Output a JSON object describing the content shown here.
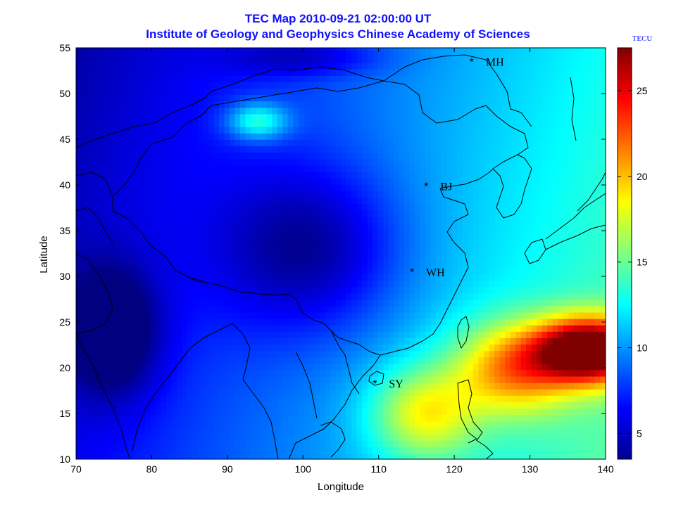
{
  "figure": {
    "title_line1": "TEC Map 2010-09-21 02:00:00 UT",
    "title_line2": "Institute of Geology and Geophysics Chinese Academy of Sciences",
    "colors": {
      "title": "#1010ff",
      "axis": "#000000",
      "land_border": "#000000"
    }
  },
  "chart_data": {
    "type": "heatmap",
    "xlabel": "Longitude",
    "ylabel": "Latitude",
    "xlim": [
      70,
      140
    ],
    "ylim": [
      10,
      55
    ],
    "x_ticks": [
      70,
      80,
      90,
      100,
      110,
      120,
      130,
      140
    ],
    "y_ticks": [
      10,
      15,
      20,
      25,
      30,
      35,
      40,
      45,
      50,
      55
    ],
    "colorbar": {
      "label": "TECU",
      "range": [
        3.5,
        27.5
      ],
      "ticks": [
        5,
        10,
        15,
        20,
        25
      ],
      "colormap": "jet"
    },
    "stations": [
      {
        "name": "MH",
        "lon": 122.3,
        "lat": 53.5
      },
      {
        "name": "BJ",
        "lon": 116.3,
        "lat": 39.9
      },
      {
        "name": "WH",
        "lon": 114.4,
        "lat": 30.5
      },
      {
        "name": "SY",
        "lon": 109.5,
        "lat": 18.3
      }
    ],
    "tec_features": [
      {
        "lon": 138,
        "lat": 22,
        "tec": 26.5,
        "spread_lon": 7,
        "spread_lat": 3.5
      },
      {
        "lon": 128,
        "lat": 20,
        "tec": 18,
        "spread_lon": 8,
        "spread_lat": 5
      },
      {
        "lon": 116,
        "lat": 15,
        "tec": 16,
        "spread_lon": 7,
        "spread_lat": 5
      },
      {
        "lon": 94,
        "lat": 47,
        "tec": 15,
        "spread_lon": 4,
        "spread_lat": 2
      },
      {
        "lon": 101,
        "lat": 33,
        "tec": 4,
        "spread_lon": 12,
        "spread_lat": 9
      },
      {
        "lon": 75,
        "lat": 24,
        "tec": 3.5,
        "spread_lon": 6,
        "spread_lat": 7
      },
      {
        "lon": 100,
        "lat": 54,
        "tec": 6,
        "spread_lon": 10,
        "spread_lat": 2
      }
    ]
  }
}
